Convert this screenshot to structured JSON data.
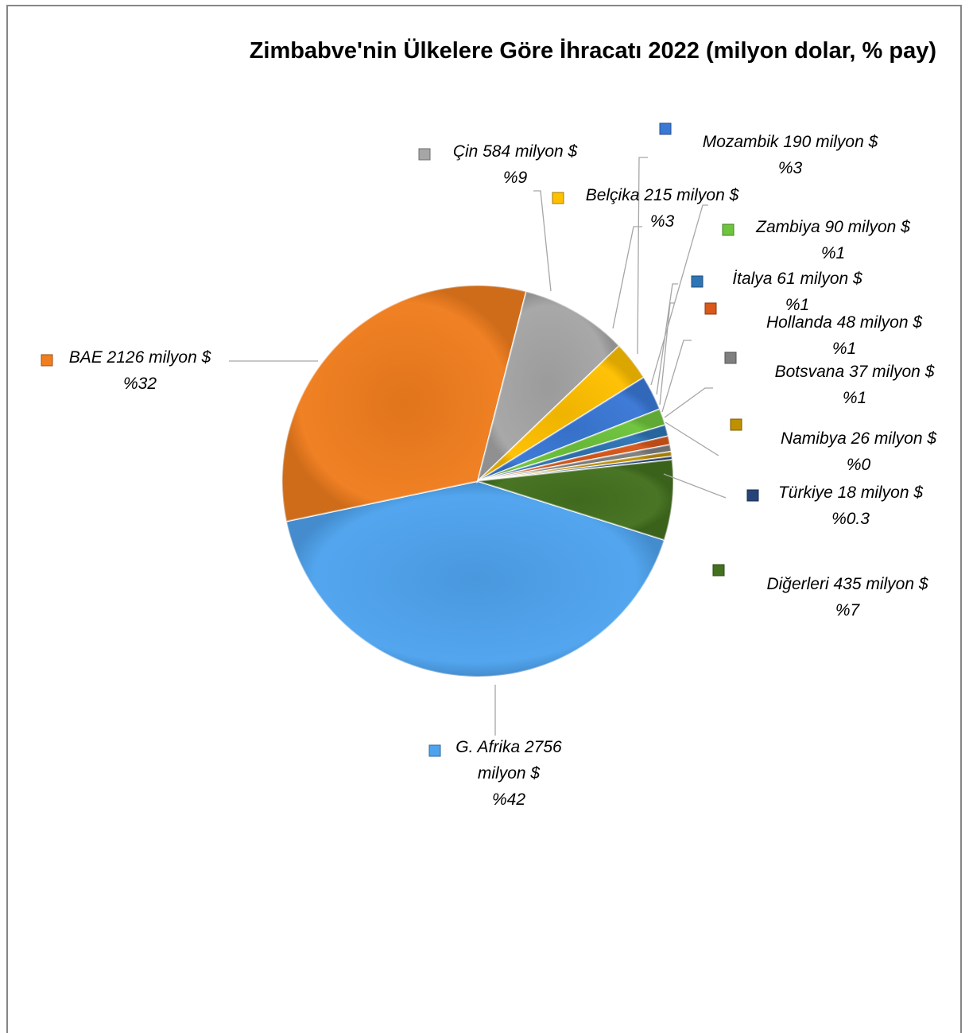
{
  "chart_data": {
    "type": "pie",
    "title": "Zimbabve'nin Ülkelere Göre İhracatı 2022 (milyon dolar, % pay)",
    "slices": [
      {
        "name": "G. Afrika",
        "label": [
          "G. Afrika 2756",
          "milyon $",
          "%42"
        ],
        "value": 2756,
        "percent": 42,
        "color": "#4ea3ee"
      },
      {
        "name": "BAE",
        "label": [
          "BAE 2126 milyon $",
          "%32"
        ],
        "value": 2126,
        "percent": 32,
        "color": "#f07d1e"
      },
      {
        "name": "Çin",
        "label": [
          "Çin 584 milyon $",
          "%9"
        ],
        "value": 584,
        "percent": 9,
        "color": "#a6a6a6"
      },
      {
        "name": "Belçika",
        "label": [
          "Belçika 215 milyon $",
          "%3"
        ],
        "value": 215,
        "percent": 3,
        "color": "#ffc000"
      },
      {
        "name": "Mozambik",
        "label": [
          "Mozambik 190 milyon $",
          "%3"
        ],
        "value": 190,
        "percent": 3,
        "color": "#3a78d6"
      },
      {
        "name": "Zambiya",
        "label": [
          "Zambiya 90 milyon $",
          "%1"
        ],
        "value": 90,
        "percent": 1,
        "color": "#6ec43c"
      },
      {
        "name": "İtalya",
        "label": [
          "İtalya 61 milyon $",
          "%1"
        ],
        "value": 61,
        "percent": 1,
        "color": "#2e75b6"
      },
      {
        "name": "Hollanda",
        "label": [
          "Hollanda 48 milyon $",
          "%1"
        ],
        "value": 48,
        "percent": 1,
        "color": "#d9581a"
      },
      {
        "name": "Botsvana",
        "label": [
          "Botsvana 37 milyon $",
          "%1"
        ],
        "value": 37,
        "percent": 1,
        "color": "#7f7f7f"
      },
      {
        "name": "Namibya",
        "label": [
          "Namibya 26 milyon $",
          "%0"
        ],
        "value": 26,
        "percent": 0,
        "color": "#bf9000"
      },
      {
        "name": "Türkiye",
        "label": [
          "Türkiye 18 milyon $",
          "%0.3"
        ],
        "value": 18,
        "percent": 0.3,
        "color": "#264478"
      },
      {
        "name": "Diğerleri",
        "label": [
          "Diğerleri 435 milyon $",
          "%7"
        ],
        "value": 435,
        "percent": 7,
        "color": "#44711f"
      }
    ]
  }
}
